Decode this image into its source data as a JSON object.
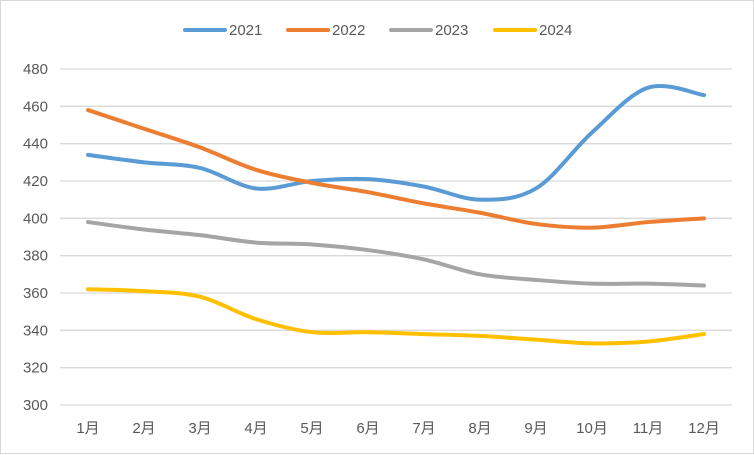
{
  "chart_data": {
    "type": "line",
    "title": "",
    "xlabel": "",
    "ylabel": "",
    "categories": [
      "1月",
      "2月",
      "3月",
      "4月",
      "5月",
      "6月",
      "7月",
      "8月",
      "9月",
      "10月",
      "11月",
      "12月"
    ],
    "ylim": [
      300,
      480
    ],
    "yticks": [
      300,
      320,
      340,
      360,
      380,
      400,
      420,
      440,
      460,
      480
    ],
    "grid": true,
    "legend_position": "top",
    "smooth": true,
    "series": [
      {
        "name": "2021",
        "color": "#5b9bd5",
        "values": [
          434,
          430,
          427,
          416,
          420,
          421,
          417,
          410,
          416,
          446,
          470,
          466
        ]
      },
      {
        "name": "2022",
        "color": "#ed7d31",
        "values": [
          458,
          448,
          438,
          426,
          419,
          414,
          408,
          403,
          397,
          395,
          398,
          400
        ]
      },
      {
        "name": "2023",
        "color": "#a5a5a5",
        "values": [
          398,
          394,
          391,
          387,
          386,
          383,
          378,
          370,
          367,
          365,
          365,
          364
        ]
      },
      {
        "name": "2024",
        "color": "#ffc000",
        "values": [
          362,
          361,
          358,
          346,
          339,
          339,
          338,
          337,
          335,
          333,
          334,
          338
        ]
      }
    ]
  }
}
